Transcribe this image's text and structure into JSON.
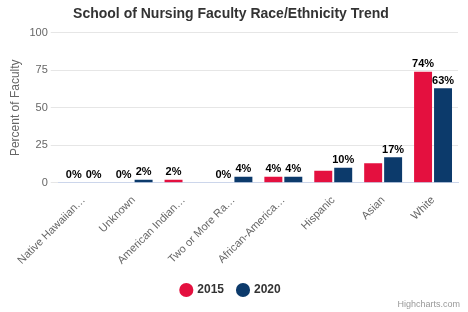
{
  "chart_data": {
    "type": "bar",
    "title": "School of Nursing Faculty Race/Ethnicity Trend",
    "y_label": "Percent of Faculty",
    "categories": [
      "Native Hawaiian…",
      "Unknown",
      "American Indian…",
      "Two or More Ra…",
      "African-America…",
      "Hispanic",
      "Asian",
      "White"
    ],
    "series": [
      {
        "name": "2015",
        "color": "#e4103f",
        "values": [
          0,
          0,
          2,
          0,
          4,
          8,
          13,
          74
        ],
        "value_labels": [
          "0%",
          "0%",
          "2%",
          "0%",
          "4%",
          null,
          null,
          "74%"
        ]
      },
      {
        "name": "2020",
        "color": "#0c3a6b",
        "values": [
          0,
          2,
          0,
          4,
          4,
          10,
          17,
          63
        ],
        "value_labels": [
          "0%",
          "2%",
          null,
          "4%",
          "4%",
          "10%",
          "17%",
          "63%"
        ]
      }
    ],
    "ylim": [
      0,
      100
    ],
    "yticks": [
      0,
      25,
      50,
      75,
      100
    ],
    "grid": true,
    "legend": "bottom",
    "data_labels": true,
    "credits": "Highcharts.com"
  }
}
